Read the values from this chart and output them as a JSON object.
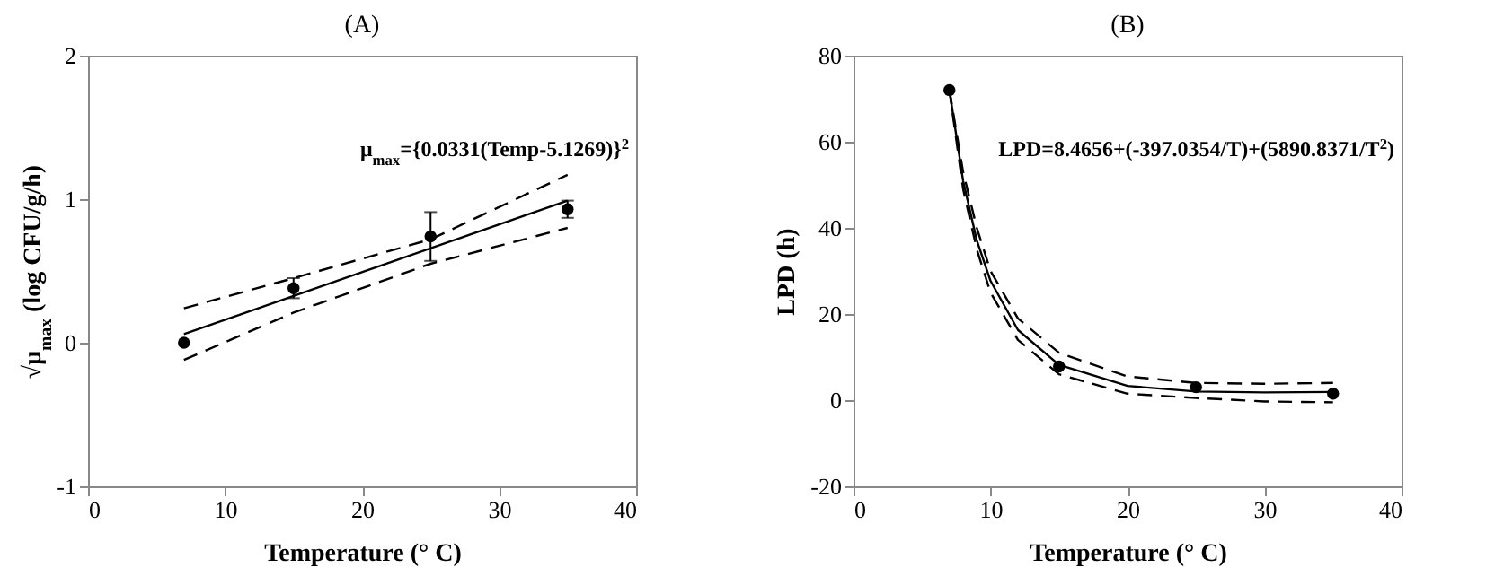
{
  "chart_data": [
    {
      "type": "scatter",
      "title": "(A)",
      "xlabel": "Temperature (°  C)",
      "ylabel": "√μ$_{max}$ (log CFU/g/h)",
      "annotations": [
        "μ$_{max}$={0.0331(Temp-5.1269)}$^{2}$"
      ],
      "xlim": [
        0,
        40
      ],
      "xticks": [
        0,
        10,
        20,
        30,
        40
      ],
      "ylim": [
        -1,
        2
      ],
      "yticks": [
        -1,
        0,
        1,
        2
      ],
      "series": [
        {
          "type": "line",
          "color": "#000000",
          "line_style": "solid",
          "marker": "none",
          "x": [
            7,
            35
          ],
          "values": [
            0.06,
            0.99
          ]
        },
        {
          "type": "line",
          "color": "#000000",
          "line_style": "dashed",
          "marker": "none",
          "x": [
            7,
            15,
            25,
            35
          ],
          "values": [
            0.24,
            0.45,
            0.72,
            1.17
          ]
        },
        {
          "type": "line",
          "color": "#000000",
          "line_style": "dashed",
          "marker": "none",
          "x": [
            7,
            15,
            25,
            35
          ],
          "values": [
            -0.12,
            0.21,
            0.55,
            0.8
          ]
        },
        {
          "type": "scatter",
          "color": "#000000",
          "marker": "circle",
          "x": [
            7,
            15,
            25,
            35
          ],
          "values": [
            0,
            0.38,
            0.74,
            0.93
          ],
          "errors": [
            null,
            0.07,
            0.17,
            0.06
          ]
        }
      ]
    },
    {
      "type": "scatter",
      "title": "(B)",
      "xlabel": "Temperature (°  C)",
      "ylabel": "LPD (h)",
      "annotations": [
        "LPD=8.4656+(-397.0354/T)+(5890.8371/T$^{2}$)"
      ],
      "xlim": [
        0,
        40
      ],
      "xticks": [
        0,
        10,
        20,
        30,
        40
      ],
      "ylim": [
        -20,
        80
      ],
      "yticks": [
        -20,
        0,
        20,
        40,
        60,
        80
      ],
      "series": [
        {
          "type": "line",
          "color": "#000000",
          "line_style": "solid",
          "marker": "none",
          "x": [
            7,
            8,
            9,
            10,
            12,
            15,
            20,
            25,
            30,
            35
          ],
          "values": [
            72,
            50.9,
            37.1,
            27.7,
            16.3,
            8.2,
            3.3,
            2,
            1.8,
            1.9
          ]
        },
        {
          "type": "line",
          "color": "#000000",
          "line_style": "dashed",
          "marker": "none",
          "x": [
            7,
            8,
            9,
            10,
            12,
            15,
            20,
            25,
            30,
            35
          ],
          "values": [
            72,
            53,
            40,
            30,
            19,
            11,
            5.5,
            4,
            3.8,
            4
          ]
        },
        {
          "type": "line",
          "color": "#000000",
          "line_style": "dashed",
          "marker": "none",
          "x": [
            7,
            8,
            9,
            10,
            12,
            15,
            20,
            25,
            30,
            35
          ],
          "values": [
            72,
            49,
            35,
            25,
            14,
            6,
            1.5,
            0.5,
            -0.3,
            -0.5
          ]
        },
        {
          "type": "scatter",
          "color": "#000000",
          "marker": "circle",
          "x": [
            7,
            15,
            25,
            35
          ],
          "values": [
            72,
            7.8,
            3,
            1.5
          ]
        }
      ]
    }
  ]
}
